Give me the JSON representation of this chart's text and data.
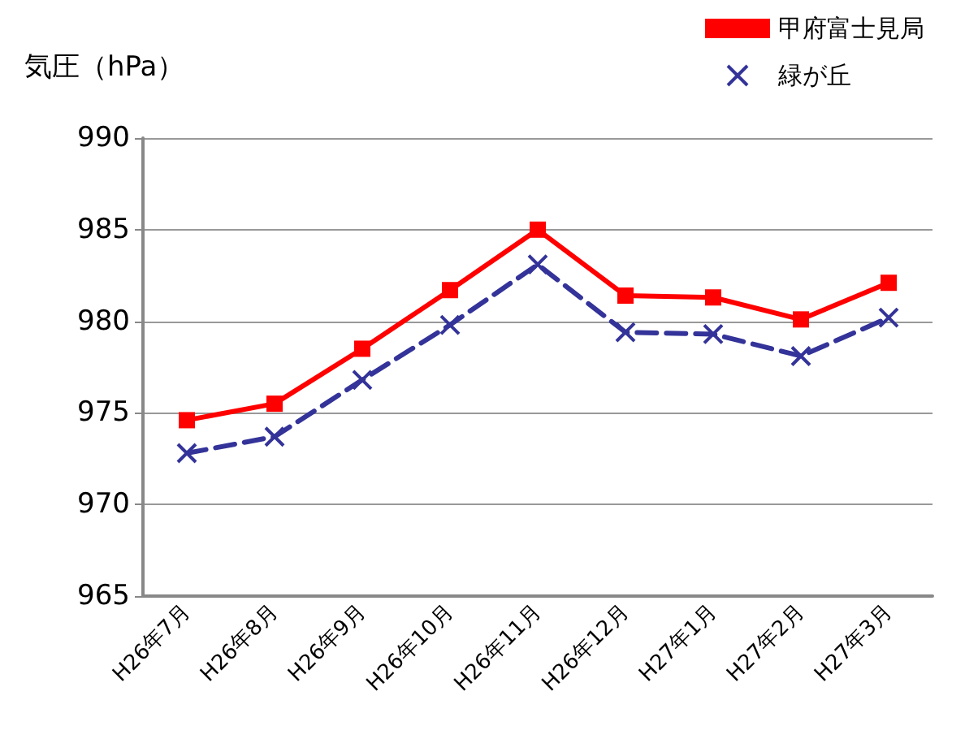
{
  "chart_data": {
    "type": "line",
    "ylabel": "気圧（hPa）",
    "categories": [
      "H26年7月",
      "H26年8月",
      "H26年9月",
      "H26年10月",
      "H26年11月",
      "H26年12月",
      "H27年1月",
      "H27年2月",
      "H27年3月"
    ],
    "series": [
      {
        "name": "甲府富士見局",
        "color": "#ff0000",
        "marker": "square",
        "line_style": "solid",
        "values": [
          974.6,
          975.5,
          978.5,
          981.7,
          985.0,
          981.4,
          981.3,
          980.1,
          982.1
        ]
      },
      {
        "name": "緑が丘",
        "color": "#333399",
        "marker": "cross",
        "line_style": "dashed",
        "values": [
          972.8,
          973.7,
          976.8,
          979.8,
          983.1,
          979.4,
          979.3,
          978.1,
          980.2
        ]
      }
    ],
    "ylim": [
      965,
      990
    ],
    "yticks": [
      965,
      970,
      975,
      980,
      985,
      990
    ],
    "grid": "y",
    "legend": "top right"
  }
}
